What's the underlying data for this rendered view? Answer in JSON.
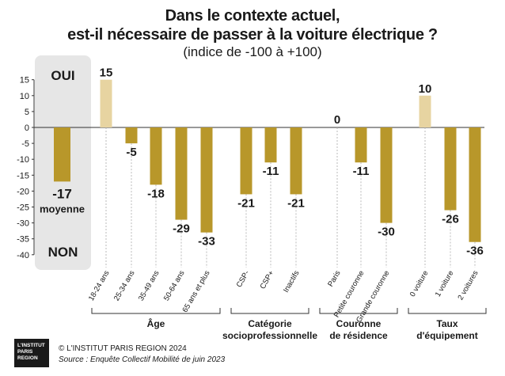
{
  "title": {
    "line1": "Dans le contexte actuel,",
    "line2": "est-il nécessaire de passer à la voiture électrique ?",
    "subtitle": "(indice de -100 à +100)"
  },
  "chart_data": {
    "type": "bar",
    "ylim": [
      -40,
      15
    ],
    "yticks": [
      15,
      10,
      5,
      0,
      -5,
      -10,
      -15,
      -20,
      -25,
      -30,
      -35,
      -40
    ],
    "grid": false,
    "average": {
      "value": -17,
      "label": "-17",
      "sublabel": "moyenne",
      "oui": "OUI",
      "non": "NON"
    },
    "groups": [
      {
        "label": [
          "Âge"
        ],
        "categories": [
          "18-24 ans",
          "25-34 ans",
          "35-49 ans",
          "50-64 ans",
          "65 ans et plus"
        ],
        "values": [
          15,
          -5,
          -18,
          -29,
          -33
        ]
      },
      {
        "label": [
          "Catégorie",
          "socioprofessionnelle"
        ],
        "categories": [
          "CSP-",
          "CSP+",
          "Inactifs"
        ],
        "values": [
          -21,
          -11,
          -21
        ]
      },
      {
        "label": [
          "Couronne",
          "de résidence"
        ],
        "categories": [
          "Paris",
          "Petite couronne",
          "Grande couronne"
        ],
        "values": [
          0,
          -11,
          -30
        ]
      },
      {
        "label": [
          "Taux",
          "d'équipement"
        ],
        "categories": [
          "0 voiture",
          "1 voiture",
          "2 voitures"
        ],
        "values": [
          10,
          -26,
          -36
        ]
      }
    ],
    "colors": {
      "negative": "#b8972a",
      "positive": "#e7d4a1",
      "avg_box": "#e6e6e6",
      "axis": "#333333"
    }
  },
  "footer": {
    "logo_lines": [
      "L'INSTITUT",
      "PARIS",
      "REGION"
    ],
    "copyright": "© L'INSTITUT PARIS REGION 2024",
    "source": "Source : Enquête Collectif Mobilité de juin 2023"
  }
}
